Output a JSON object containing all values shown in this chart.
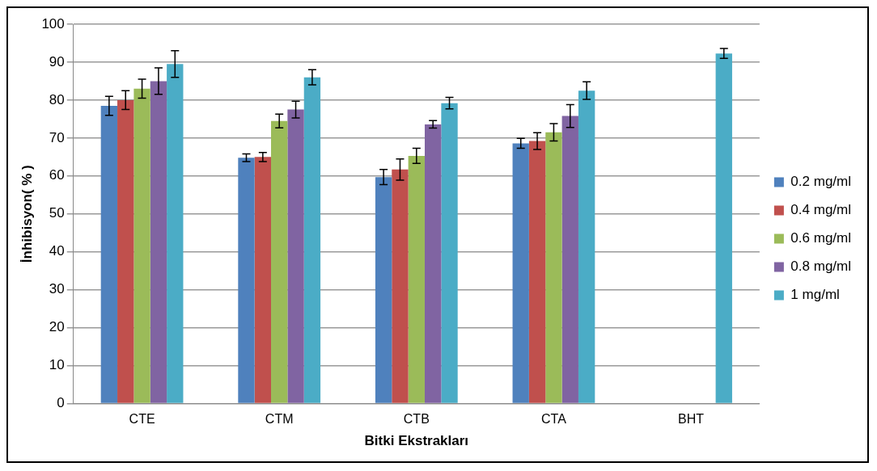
{
  "chart_data": {
    "type": "bar",
    "xlabel": "Bitki Ekstrakları",
    "ylabel": "İnhibisyon( % )",
    "categories": [
      "CTE",
      "CTM",
      "CTB",
      "CTA",
      "BHT"
    ],
    "series": [
      {
        "name": "0.2 mg/ml",
        "color": "#4f81bd",
        "values": [
          78.5,
          64.8,
          59.7,
          68.6,
          null
        ],
        "errors": [
          2.5,
          1,
          2,
          1.3,
          null
        ]
      },
      {
        "name": "0.4 mg/ml",
        "color": "#c0504d",
        "values": [
          80,
          65,
          61.7,
          69.2,
          null
        ],
        "errors": [
          2.5,
          1.2,
          2.8,
          2.2,
          null
        ]
      },
      {
        "name": "0.6 mg/ml",
        "color": "#9bbb59",
        "values": [
          83,
          74.5,
          65.3,
          71.5,
          null
        ],
        "errors": [
          2.5,
          1.8,
          2,
          2.3,
          null
        ]
      },
      {
        "name": "0.8 mg/ml",
        "color": "#8064a2",
        "values": [
          85,
          77.5,
          73.6,
          75.8,
          null
        ],
        "errors": [
          3.5,
          2.2,
          1,
          3,
          null
        ]
      },
      {
        "name": "1 mg/ml",
        "color": "#4bacc6",
        "values": [
          89.5,
          86,
          79.2,
          82.5,
          92.3
        ],
        "errors": [
          3.5,
          2,
          1.5,
          2.3,
          1.3
        ]
      }
    ],
    "ylim": [
      0,
      100
    ],
    "yticks": [
      0,
      10,
      20,
      30,
      40,
      50,
      60,
      70,
      80,
      90,
      100
    ],
    "grid": "y",
    "legend": "right"
  }
}
